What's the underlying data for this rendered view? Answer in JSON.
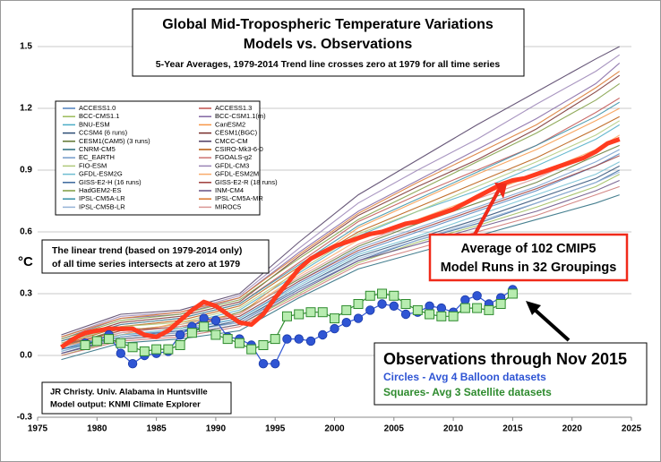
{
  "chart_data": {
    "type": "line",
    "title": "Global Mid-Tropospheric Temperature Variations",
    "subtitle": "Models vs. Observations",
    "note": "5-Year Averages, 1979-2014 Trend line crosses zero at 1979 for all time series",
    "ylabel": "°C",
    "annotations": {
      "trend": [
        "The linear trend (based on 1979-2014 only)",
        "of all time series intersects at zero at 1979"
      ],
      "average": [
        "Average of 102 CMIP5",
        "Model Runs in 32 Groupings"
      ],
      "observations": "Observations through Nov 2015",
      "credit": [
        "JR Christy. Univ. Alabama in Huntsville",
        "Model output: KNMI Climate Explorer"
      ]
    },
    "xlim": [
      1975,
      2025
    ],
    "xticks": [
      1975,
      1980,
      1985,
      1990,
      1995,
      2000,
      2005,
      2010,
      2015,
      2020,
      2025
    ],
    "ylim": [
      -0.3,
      1.5
    ],
    "yticks": [
      1.5,
      1.2,
      0.9,
      0.6,
      0.3,
      {
        "value": 0,
        "label": "0.0"
      },
      -0.3
    ],
    "grid": true,
    "series": [
      {
        "name": "ACCESS1.0",
        "color": "#4f81bd",
        "style": "model",
        "x": [
          1977,
          1982,
          1987,
          1992,
          1997,
          2002,
          2007,
          2012,
          2017,
          2022,
          2024
        ],
        "values": [
          0.02,
          0.1,
          0.12,
          0.18,
          0.35,
          0.5,
          0.6,
          0.7,
          0.8,
          0.92,
          0.98
        ]
      },
      {
        "name": "ACCESS1.3",
        "color": "#c0504d",
        "style": "model",
        "x": [
          1977,
          1982,
          1987,
          1992,
          1997,
          2002,
          2007,
          2012,
          2017,
          2022,
          2024
        ],
        "values": [
          0.06,
          0.15,
          0.18,
          0.25,
          0.45,
          0.65,
          0.78,
          0.9,
          1.02,
          1.18,
          1.25
        ]
      },
      {
        "name": "BCC-CMS1.1",
        "color": "#9bbb59",
        "style": "model",
        "x": [
          1977,
          1982,
          1987,
          1992,
          1997,
          2002,
          2007,
          2012,
          2017,
          2022,
          2024
        ],
        "values": [
          0.0,
          0.08,
          0.1,
          0.15,
          0.3,
          0.45,
          0.55,
          0.63,
          0.72,
          0.82,
          0.88
        ]
      },
      {
        "name": "BCC-CSM1.1(m)",
        "color": "#8064a2",
        "style": "model",
        "x": [
          1977,
          1982,
          1987,
          1992,
          1997,
          2002,
          2007,
          2012,
          2017,
          2022,
          2024
        ],
        "values": [
          0.08,
          0.18,
          0.2,
          0.28,
          0.5,
          0.7,
          0.85,
          1.0,
          1.15,
          1.32,
          1.42
        ]
      },
      {
        "name": "BNU-ESM",
        "color": "#4bacc6",
        "style": "model",
        "x": [
          1977,
          1982,
          1987,
          1992,
          1997,
          2002,
          2007,
          2012,
          2017,
          2022,
          2024
        ],
        "values": [
          0.03,
          0.12,
          0.15,
          0.22,
          0.4,
          0.58,
          0.7,
          0.8,
          0.92,
          1.05,
          1.12
        ]
      },
      {
        "name": "CanESM2",
        "color": "#f79646",
        "style": "model",
        "x": [
          1977,
          1982,
          1987,
          1992,
          1997,
          2002,
          2007,
          2012,
          2017,
          2022,
          2024
        ],
        "values": [
          0.05,
          0.1,
          0.16,
          0.2,
          0.42,
          0.62,
          0.75,
          0.88,
          1.0,
          1.14,
          1.2
        ]
      },
      {
        "name": "CCSM4 (6 runs)",
        "color": "#2c4d75",
        "style": "model",
        "x": [
          1977,
          1982,
          1987,
          1992,
          1997,
          2002,
          2007,
          2012,
          2017,
          2022,
          2024
        ],
        "values": [
          0.01,
          0.09,
          0.11,
          0.17,
          0.33,
          0.48,
          0.57,
          0.66,
          0.76,
          0.86,
          0.92
        ]
      },
      {
        "name": "CESM1(BGC)",
        "color": "#772c2a",
        "style": "model",
        "x": [
          1977,
          1982,
          1987,
          1992,
          1997,
          2002,
          2007,
          2012,
          2017,
          2022,
          2024
        ],
        "values": [
          0.07,
          0.16,
          0.19,
          0.26,
          0.48,
          0.68,
          0.82,
          0.95,
          1.1,
          1.28,
          1.36
        ]
      },
      {
        "name": "CESM1(CAM5) (3 runs)",
        "color": "#5f7530",
        "style": "model",
        "x": [
          1977,
          1982,
          1987,
          1992,
          1997,
          2002,
          2007,
          2012,
          2017,
          2022,
          2024
        ],
        "values": [
          0.04,
          0.13,
          0.13,
          0.21,
          0.37,
          0.53,
          0.64,
          0.74,
          0.84,
          0.97,
          1.02
        ]
      },
      {
        "name": "CMCC-CM",
        "color": "#4d3b62",
        "style": "model",
        "x": [
          1977,
          1982,
          1987,
          1992,
          1997,
          2002,
          2007,
          2012,
          2017,
          2022,
          2024
        ],
        "values": [
          0.1,
          0.2,
          0.22,
          0.3,
          0.55,
          0.78,
          0.95,
          1.12,
          1.28,
          1.44,
          1.5
        ]
      },
      {
        "name": "CNRM-CM5",
        "color": "#276a7c",
        "style": "model",
        "x": [
          1977,
          1982,
          1987,
          1992,
          1997,
          2002,
          2007,
          2012,
          2017,
          2022,
          2024
        ],
        "values": [
          -0.02,
          0.06,
          0.08,
          0.12,
          0.28,
          0.42,
          0.5,
          0.58,
          0.66,
          0.74,
          0.78
        ]
      },
      {
        "name": "CSIRO-Mk3-6-0",
        "color": "#b65708",
        "style": "model",
        "x": [
          1977,
          1982,
          1987,
          1992,
          1997,
          2002,
          2007,
          2012,
          2017,
          2022,
          2024
        ],
        "values": [
          0.05,
          0.14,
          0.17,
          0.24,
          0.43,
          0.6,
          0.72,
          0.84,
          0.96,
          1.1,
          1.16
        ]
      },
      {
        "name": "EC_EARTH",
        "color": "#729aca",
        "style": "model",
        "x": [
          1977,
          1982,
          1987,
          1992,
          1997,
          2002,
          2007,
          2012,
          2017,
          2022,
          2024
        ],
        "values": [
          0.03,
          0.11,
          0.14,
          0.19,
          0.36,
          0.52,
          0.62,
          0.72,
          0.82,
          0.94,
          1.0
        ]
      },
      {
        "name": "FGOALS-g2",
        "color": "#cd7371",
        "style": "model",
        "x": [
          1977,
          1982,
          1987,
          1992,
          1997,
          2002,
          2007,
          2012,
          2017,
          2022,
          2024
        ],
        "values": [
          0.0,
          0.07,
          0.09,
          0.14,
          0.29,
          0.44,
          0.52,
          0.6,
          0.68,
          0.78,
          0.82
        ]
      },
      {
        "name": "FIO-ESM",
        "color": "#afc97a",
        "style": "model",
        "x": [
          1977,
          1982,
          1987,
          1992,
          1997,
          2002,
          2007,
          2012,
          2017,
          2022,
          2024
        ],
        "values": [
          0.06,
          0.14,
          0.16,
          0.23,
          0.41,
          0.59,
          0.7,
          0.82,
          0.94,
          1.07,
          1.14
        ]
      },
      {
        "name": "GFDL-CM3",
        "color": "#9983b5",
        "style": "model",
        "x": [
          1977,
          1982,
          1987,
          1992,
          1997,
          2002,
          2007,
          2012,
          2017,
          2022,
          2024
        ],
        "values": [
          0.09,
          0.19,
          0.21,
          0.29,
          0.52,
          0.74,
          0.9,
          1.05,
          1.22,
          1.38,
          1.46
        ]
      },
      {
        "name": "GFDL-ESM2G",
        "color": "#6fbdd1",
        "style": "model",
        "x": [
          1977,
          1982,
          1987,
          1992,
          1997,
          2002,
          2007,
          2012,
          2017,
          2022,
          2024
        ],
        "values": [
          0.02,
          0.1,
          0.13,
          0.18,
          0.34,
          0.49,
          0.58,
          0.68,
          0.78,
          0.88,
          0.94
        ]
      },
      {
        "name": "GFDL-ESM2M",
        "color": "#f9ab6b",
        "style": "model",
        "x": [
          1977,
          1982,
          1987,
          1992,
          1997,
          2002,
          2007,
          2012,
          2017,
          2022,
          2024
        ],
        "values": [
          0.04,
          0.12,
          0.15,
          0.2,
          0.39,
          0.56,
          0.66,
          0.77,
          0.88,
          1.0,
          1.07
        ]
      },
      {
        "name": "GISS-E2-H (16 runs)",
        "color": "#3a679c",
        "style": "model",
        "x": [
          1977,
          1982,
          1987,
          1992,
          1997,
          2002,
          2007,
          2012,
          2017,
          2022,
          2024
        ],
        "values": [
          0.03,
          0.09,
          0.12,
          0.16,
          0.32,
          0.46,
          0.56,
          0.64,
          0.74,
          0.84,
          0.9
        ]
      },
      {
        "name": "GISS-E2-R (18 runs)",
        "color": "#9e3b38",
        "style": "model",
        "x": [
          1977,
          1982,
          1987,
          1992,
          1997,
          2002,
          2007,
          2012,
          2017,
          2022,
          2024
        ],
        "values": [
          0.05,
          0.12,
          0.14,
          0.19,
          0.36,
          0.51,
          0.61,
          0.71,
          0.81,
          0.92,
          0.97
        ]
      },
      {
        "name": "HadGEM2-ES",
        "color": "#7e9c40",
        "style": "model",
        "x": [
          1977,
          1982,
          1987,
          1992,
          1997,
          2002,
          2007,
          2012,
          2017,
          2022,
          2024
        ],
        "values": [
          0.08,
          0.17,
          0.2,
          0.27,
          0.47,
          0.66,
          0.8,
          0.94,
          1.08,
          1.24,
          1.32
        ]
      },
      {
        "name": "INM-CM4",
        "color": "#664f82",
        "style": "model",
        "x": [
          1977,
          1982,
          1987,
          1992,
          1997,
          2002,
          2007,
          2012,
          2017,
          2022,
          2024
        ],
        "values": [
          0.01,
          0.08,
          0.1,
          0.15,
          0.31,
          0.46,
          0.54,
          0.62,
          0.7,
          0.8,
          0.85
        ]
      },
      {
        "name": "IPSL-CM5A-LR",
        "color": "#348ea6",
        "style": "model",
        "x": [
          1977,
          1982,
          1987,
          1992,
          1997,
          2002,
          2007,
          2012,
          2017,
          2022,
          2024
        ],
        "values": [
          0.07,
          0.15,
          0.18,
          0.25,
          0.44,
          0.63,
          0.76,
          0.89,
          1.02,
          1.16,
          1.23
        ]
      },
      {
        "name": "IPSL-CM5A-MR",
        "color": "#d9752b",
        "style": "model",
        "x": [
          1977,
          1982,
          1987,
          1992,
          1997,
          2002,
          2007,
          2012,
          2017,
          2022,
          2024
        ],
        "values": [
          0.09,
          0.18,
          0.21,
          0.28,
          0.49,
          0.69,
          0.84,
          0.98,
          1.12,
          1.3,
          1.38
        ]
      },
      {
        "name": "IPSL-CM5B-LR",
        "color": "#95b3d7",
        "style": "model",
        "x": [
          1977,
          1982,
          1987,
          1992,
          1997,
          2002,
          2007,
          2012,
          2017,
          2022,
          2024
        ],
        "values": [
          0.02,
          0.09,
          0.11,
          0.16,
          0.33,
          0.47,
          0.56,
          0.65,
          0.74,
          0.84,
          0.89
        ]
      },
      {
        "name": "MIROC5",
        "color": "#d99694",
        "style": "model",
        "x": [
          1977,
          1982,
          1987,
          1992,
          1997,
          2002,
          2007,
          2012,
          2017,
          2022,
          2024
        ],
        "values": [
          0.04,
          0.11,
          0.14,
          0.2,
          0.38,
          0.54,
          0.65,
          0.76,
          0.86,
          0.99,
          1.06
        ]
      },
      {
        "color": "#ff3b1f",
        "style": "average",
        "x": [
          1977,
          1978,
          1979,
          1980,
          1981,
          1982,
          1983,
          1984,
          1985,
          1986,
          1987,
          1988,
          1989,
          1990,
          1991,
          1992,
          1993,
          1994,
          1995,
          1996,
          1997,
          1998,
          1999,
          2000,
          2001,
          2002,
          2003,
          2004,
          2005,
          2006,
          2007,
          2008,
          2009,
          2010,
          2011,
          2012,
          2013,
          2014,
          2015,
          2016,
          2017,
          2018,
          2019,
          2020,
          2021,
          2022,
          2023,
          2024
        ],
        "values": [
          0.04,
          0.08,
          0.11,
          0.12,
          0.13,
          0.13,
          0.13,
          0.1,
          0.09,
          0.12,
          0.17,
          0.22,
          0.26,
          0.24,
          0.2,
          0.16,
          0.15,
          0.2,
          0.28,
          0.35,
          0.42,
          0.47,
          0.5,
          0.53,
          0.55,
          0.57,
          0.59,
          0.6,
          0.62,
          0.64,
          0.65,
          0.67,
          0.69,
          0.71,
          0.74,
          0.77,
          0.8,
          0.83,
          0.85,
          0.86,
          0.88,
          0.9,
          0.92,
          0.94,
          0.96,
          0.99,
          1.03,
          1.05
        ]
      },
      {
        "name": "Circles - Avg 4 Balloon datasets",
        "color": "#2f55d4",
        "style": "circles",
        "x": [
          1979,
          1980,
          1981,
          1982,
          1983,
          1984,
          1985,
          1986,
          1987,
          1988,
          1989,
          1990,
          1991,
          1992,
          1993,
          1994,
          1995,
          1996,
          1997,
          1998,
          1999,
          2000,
          2001,
          2002,
          2003,
          2004,
          2005,
          2006,
          2007,
          2008,
          2009,
          2010,
          2011,
          2012,
          2013,
          2014,
          2015
        ],
        "values": [
          0.06,
          0.07,
          0.1,
          0.01,
          -0.04,
          0.0,
          0.01,
          0.02,
          0.1,
          0.14,
          0.18,
          0.17,
          0.09,
          0.08,
          0.05,
          -0.04,
          -0.04,
          0.08,
          0.08,
          0.07,
          0.1,
          0.13,
          0.16,
          0.18,
          0.22,
          0.25,
          0.24,
          0.2,
          0.21,
          0.24,
          0.23,
          0.21,
          0.27,
          0.29,
          0.25,
          0.28,
          0.32
        ]
      },
      {
        "name": "Squares- Avg 3 Satellite datasets",
        "color": "#2e8b2e",
        "fill": "#b8ecb0",
        "style": "squares",
        "x": [
          1979,
          1980,
          1981,
          1982,
          1983,
          1984,
          1985,
          1986,
          1987,
          1988,
          1989,
          1990,
          1991,
          1992,
          1993,
          1994,
          1995,
          1996,
          1997,
          1998,
          1999,
          2000,
          2001,
          2002,
          2003,
          2004,
          2005,
          2006,
          2007,
          2008,
          2009,
          2010,
          2011,
          2012,
          2013,
          2014,
          2015
        ],
        "values": [
          0.05,
          0.07,
          0.08,
          0.06,
          0.04,
          0.02,
          0.03,
          0.03,
          0.05,
          0.11,
          0.14,
          0.1,
          0.08,
          0.06,
          0.03,
          0.05,
          0.08,
          0.19,
          0.2,
          0.21,
          0.21,
          0.18,
          0.22,
          0.25,
          0.29,
          0.3,
          0.29,
          0.25,
          0.22,
          0.2,
          0.19,
          0.19,
          0.23,
          0.23,
          0.22,
          0.25,
          0.3
        ]
      }
    ]
  }
}
